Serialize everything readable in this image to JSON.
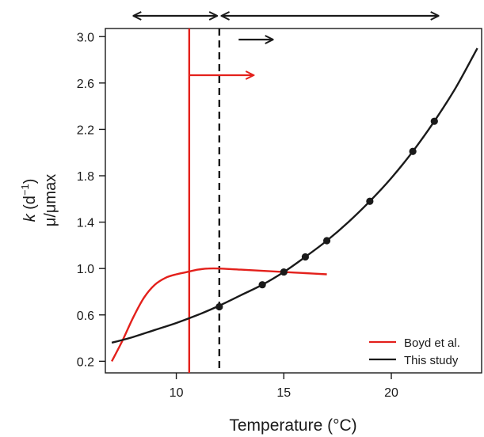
{
  "chart_data": {
    "type": "line",
    "xlabel": "Temperature (°C)",
    "ylabel_line1": "k (d⁻¹)",
    "ylabel_line1_symbol": "k",
    "ylabel_line1_rest": " (d",
    "ylabel_line1_sup": "−1",
    "ylabel_line1_close": ")",
    "ylabel_line2": "μ/μmax",
    "xlim": [
      6.7,
      24.2
    ],
    "ylim": [
      0.1,
      3.07
    ],
    "xticks": [
      10,
      15,
      20
    ],
    "yticks": [
      0.2,
      0.6,
      1.0,
      1.4,
      1.8,
      2.2,
      2.6,
      3.0
    ],
    "ytick_labels": [
      "0.2",
      "0.6",
      "1.0",
      "1.4",
      "1.8",
      "2.2",
      "2.6",
      "3.0"
    ],
    "xtick_labels": [
      "10",
      "15",
      "20"
    ],
    "legend_position": "bottom-right",
    "series": [
      {
        "name": "Boyd et al.",
        "color": "#e3201b",
        "x": [
          7.0,
          7.5,
          8.0,
          8.5,
          9.0,
          9.5,
          10.0,
          10.5,
          11.0,
          11.5,
          12.0,
          13.0,
          14.0,
          15.0,
          16.0,
          17.0
        ],
        "y": [
          0.2,
          0.38,
          0.58,
          0.75,
          0.86,
          0.92,
          0.95,
          0.97,
          0.99,
          1.0,
          1.0,
          0.99,
          0.98,
          0.97,
          0.96,
          0.95
        ]
      },
      {
        "name": "This study",
        "color": "#1a1a1a",
        "x": [
          7.0,
          8.0,
          9.0,
          10.0,
          11.0,
          12.0,
          13.0,
          14.0,
          15.0,
          16.0,
          17.0,
          18.0,
          19.0,
          20.0,
          21.0,
          22.0,
          23.0,
          24.0
        ],
        "y": [
          0.36,
          0.41,
          0.47,
          0.53,
          0.6,
          0.68,
          0.77,
          0.86,
          0.97,
          1.1,
          1.24,
          1.4,
          1.58,
          1.78,
          2.01,
          2.27,
          2.56,
          2.9
        ],
        "markers_x": [
          12,
          14,
          15,
          16,
          17,
          19,
          21,
          22
        ],
        "markers_y": [
          0.67,
          0.86,
          0.97,
          1.1,
          1.24,
          1.58,
          2.01,
          2.27
        ]
      }
    ],
    "vlines": [
      {
        "x": 10.6,
        "color": "#e3201b",
        "style": "solid"
      },
      {
        "x": 12.0,
        "color": "#1a1a1a",
        "style": "dashed"
      }
    ],
    "annotation_arrows": [
      {
        "x1": 8.0,
        "x2": 11.9,
        "y": 3.2,
        "color": "#1a1a1a",
        "heads": "both"
      },
      {
        "x1": 12.1,
        "x2": 22.2,
        "y": 3.2,
        "color": "#1a1a1a",
        "heads": "both"
      },
      {
        "x1": 12.9,
        "x2": 14.5,
        "y": 3.0,
        "color": "#1a1a1a",
        "heads": "end"
      },
      {
        "x1": 10.6,
        "x2": 13.6,
        "y": 2.7,
        "color": "#e3201b",
        "heads": "end"
      }
    ]
  }
}
